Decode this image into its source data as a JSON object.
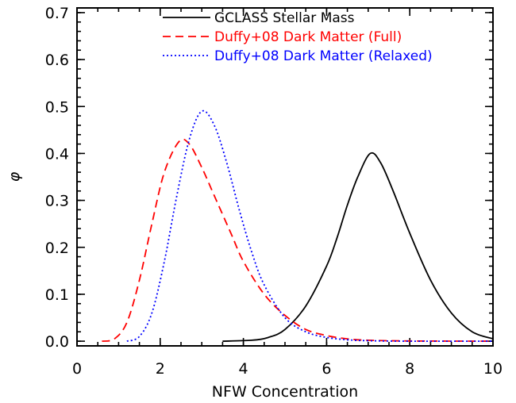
{
  "chart_data": {
    "type": "line",
    "title": "",
    "xlabel": "NFW Concentration",
    "ylabel": "φ",
    "xlim": [
      0,
      10
    ],
    "ylim": [
      -0.01,
      0.71
    ],
    "xticks": [
      0,
      2,
      4,
      6,
      8,
      10
    ],
    "xtick_labels": [
      "0",
      "2",
      "4",
      "6",
      "8",
      "10"
    ],
    "yticks": [
      0.0,
      0.1,
      0.2,
      0.3,
      0.4,
      0.5,
      0.6,
      0.7
    ],
    "ytick_labels": [
      "0.0",
      "0.1",
      "0.2",
      "0.3",
      "0.4",
      "0.5",
      "0.6",
      "0.7"
    ],
    "grid": false,
    "legend_position": "top-right",
    "series": [
      {
        "name": "GCLASS Stellar Mass",
        "color": "#000000",
        "dash": "solid",
        "points": [
          [
            3.5,
            0
          ],
          [
            4.2,
            0.002
          ],
          [
            4.6,
            0.008
          ],
          [
            5.0,
            0.025
          ],
          [
            5.5,
            0.075
          ],
          [
            6.0,
            0.16
          ],
          [
            6.25,
            0.22
          ],
          [
            6.5,
            0.29
          ],
          [
            6.75,
            0.35
          ],
          [
            7.05,
            0.4
          ],
          [
            7.3,
            0.38
          ],
          [
            7.6,
            0.32
          ],
          [
            8.0,
            0.23
          ],
          [
            8.5,
            0.13
          ],
          [
            9.0,
            0.06
          ],
          [
            9.5,
            0.02
          ],
          [
            10.0,
            0.005
          ]
        ]
      },
      {
        "name": "Duffy+08 Dark Matter (Full)",
        "color": "#ff0000",
        "dash": "long-dash",
        "points": [
          [
            0.6,
            0
          ],
          [
            0.9,
            0.005
          ],
          [
            1.2,
            0.04
          ],
          [
            1.5,
            0.13
          ],
          [
            1.8,
            0.25
          ],
          [
            2.1,
            0.36
          ],
          [
            2.45,
            0.425
          ],
          [
            2.7,
            0.42
          ],
          [
            3.0,
            0.37
          ],
          [
            3.3,
            0.31
          ],
          [
            3.7,
            0.23
          ],
          [
            4.0,
            0.17
          ],
          [
            4.5,
            0.1
          ],
          [
            5.0,
            0.055
          ],
          [
            5.5,
            0.025
          ],
          [
            6.0,
            0.012
          ],
          [
            6.5,
            0.005
          ],
          [
            7.0,
            0.002
          ],
          [
            8.0,
            0.0005
          ],
          [
            10.0,
            0
          ]
        ]
      },
      {
        "name": "Duffy+08 Dark Matter (Relaxed)",
        "color": "#0000ff",
        "dash": "dotted",
        "points": [
          [
            1.2,
            0
          ],
          [
            1.5,
            0.01
          ],
          [
            1.8,
            0.06
          ],
          [
            2.1,
            0.17
          ],
          [
            2.4,
            0.31
          ],
          [
            2.7,
            0.43
          ],
          [
            3.0,
            0.49
          ],
          [
            3.3,
            0.46
          ],
          [
            3.6,
            0.38
          ],
          [
            3.9,
            0.28
          ],
          [
            4.2,
            0.19
          ],
          [
            4.5,
            0.12
          ],
          [
            5.0,
            0.05
          ],
          [
            5.5,
            0.02
          ],
          [
            6.0,
            0.008
          ],
          [
            6.5,
            0.003
          ],
          [
            7.0,
            0.001
          ],
          [
            8.0,
            0
          ],
          [
            10.0,
            0
          ]
        ]
      }
    ]
  }
}
